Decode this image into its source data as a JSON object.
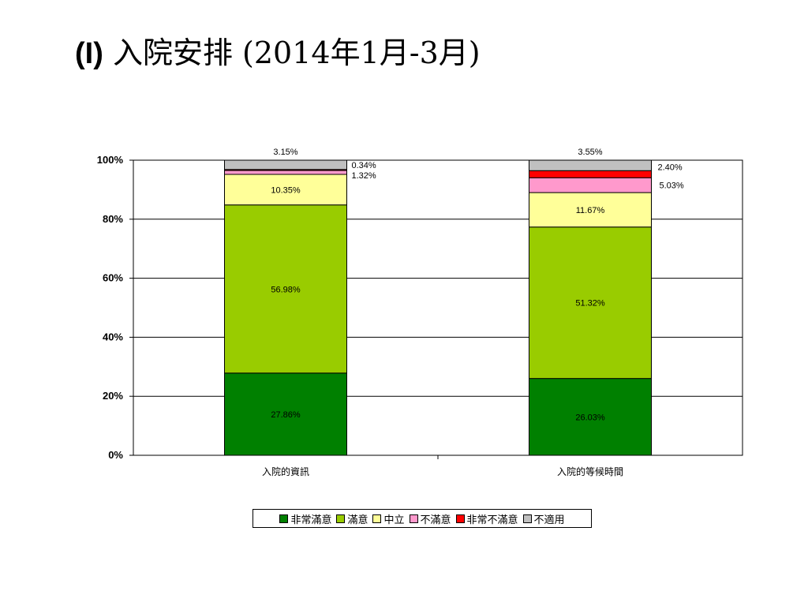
{
  "page": {
    "title_prefix": "(I)",
    "title_main": "入院安排 (2014年1月-3月)"
  },
  "chart_data": {
    "type": "bar",
    "stacked": true,
    "categories": [
      "入院的資訊",
      "入院的等候時間"
    ],
    "ylim": [
      0,
      100
    ],
    "yticks": [
      "0%",
      "20%",
      "40%",
      "60%",
      "80%",
      "100%"
    ],
    "grid": true,
    "legend_position": "bottom",
    "series": [
      {
        "name": "非常滿意",
        "color": "#008000",
        "values": [
          27.86,
          26.03
        ],
        "labels": [
          "27.86%",
          "26.03%"
        ]
      },
      {
        "name": "滿意",
        "color": "#99cc00",
        "values": [
          56.98,
          51.32
        ],
        "labels": [
          "56.98%",
          "51.32%"
        ]
      },
      {
        "name": "中立",
        "color": "#ffff99",
        "values": [
          10.35,
          11.67
        ],
        "labels": [
          "10.35%",
          "11.67%"
        ]
      },
      {
        "name": "不滿意",
        "color": "#ff99cc",
        "values": [
          1.32,
          5.03
        ],
        "labels": [
          "1.32%",
          "5.03%"
        ]
      },
      {
        "name": "非常不滿意",
        "color": "#ff0000",
        "values": [
          0.34,
          2.4
        ],
        "labels": [
          "0.34%",
          "2.40%"
        ]
      },
      {
        "name": "不適用",
        "color": "#c0c0c0",
        "values": [
          3.15,
          3.55
        ],
        "labels": [
          "3.15%",
          "3.55%"
        ]
      }
    ]
  }
}
